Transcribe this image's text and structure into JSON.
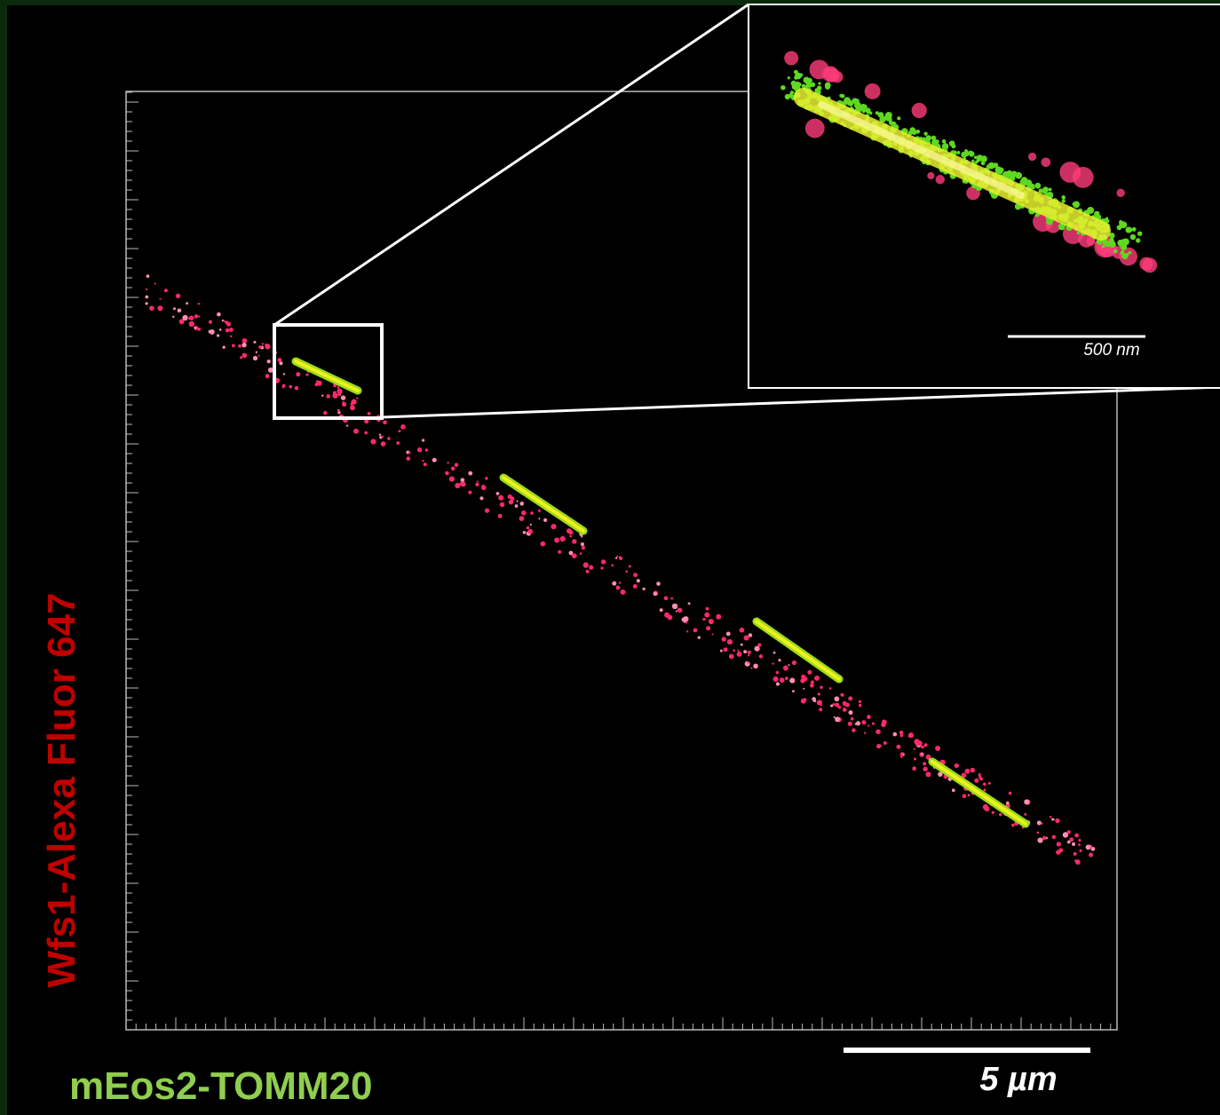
{
  "labels": {
    "y_axis": "Wfs1-Alexa Fluor 647",
    "x_axis": "mEos2-TOMM20"
  },
  "scale_bar": "5 µm",
  "inset": {
    "scale_bar": "500 nm"
  }
}
